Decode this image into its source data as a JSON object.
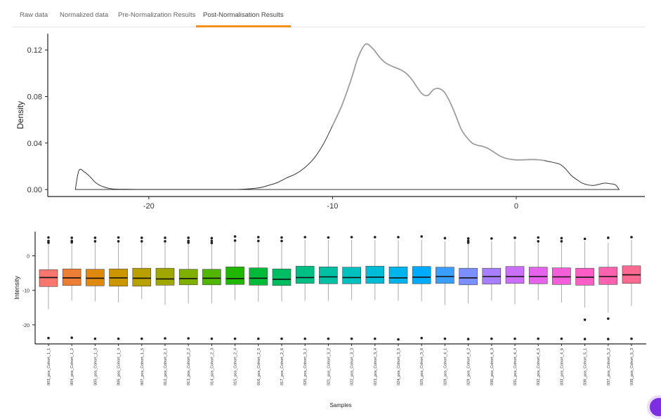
{
  "tabs": [
    {
      "label": "Raw data",
      "active": false
    },
    {
      "label": "Normalized data",
      "active": false
    },
    {
      "label": "Pre-Normalization Results",
      "active": false
    },
    {
      "label": "Post-Normalisation Results",
      "active": true
    }
  ],
  "colors": {
    "accent": "#f39212",
    "density_line": "#333333",
    "density_highlight": "#9e9e9e"
  },
  "chart_data": [
    {
      "type": "line",
      "title": "",
      "xlabel": "",
      "ylabel": "Density",
      "xlim": [
        -25.5,
        7
      ],
      "ylim": [
        -0.006,
        0.134
      ],
      "xticks": [
        -20,
        -10,
        0
      ],
      "yticks": [
        0.0,
        0.04,
        0.08,
        0.12
      ],
      "ytick_labels": [
        "0.00",
        "0.04",
        "0.08",
        "0.12"
      ],
      "xtick_labels": [
        "-20",
        "-10",
        "0"
      ],
      "grid": false,
      "series": [
        {
          "x": [
            -24,
            -23.8,
            -23.5,
            -23.2,
            -22.9,
            -22.5,
            -22.0,
            -21,
            -20,
            -18,
            -16,
            -15,
            -14,
            -13.5,
            -13,
            -12.5,
            -12,
            -11.5,
            -11,
            -10.5,
            -10,
            -9.5,
            -9,
            -8.6,
            -8.2,
            -7.8,
            -7.5,
            -7.2,
            -6.9,
            -6.6,
            -6.3,
            -6,
            -5.7,
            -5.4,
            -5.1,
            -4.8,
            -4.5,
            -4.2,
            -3.9,
            -3.6,
            -3.3,
            -3,
            -2.7,
            -2.4,
            -2.1,
            -1.8,
            -1.5,
            -1.2,
            -0.9,
            -0.6,
            -0.3,
            0,
            0.3,
            0.6,
            0.9,
            1.2,
            1.5,
            1.8,
            2.1,
            2.4,
            2.7,
            3.0,
            3.3,
            3.6,
            3.9,
            4.2,
            4.5,
            4.8,
            5.1,
            5.4,
            5.6
          ],
          "y": [
            0.0,
            0.0165,
            0.015,
            0.011,
            0.006,
            0.0025,
            0.0006,
            0.0002,
            0.0001,
            0.0001,
            0.0001,
            0.0002,
            0.0015,
            0.0035,
            0.006,
            0.01,
            0.0135,
            0.019,
            0.027,
            0.039,
            0.055,
            0.072,
            0.094,
            0.114,
            0.125,
            0.121,
            0.115,
            0.11,
            0.107,
            0.105,
            0.103,
            0.1,
            0.095,
            0.088,
            0.082,
            0.081,
            0.086,
            0.0868,
            0.0835,
            0.075,
            0.064,
            0.052,
            0.045,
            0.04,
            0.038,
            0.037,
            0.035,
            0.032,
            0.029,
            0.027,
            0.026,
            0.0255,
            0.0255,
            0.0257,
            0.0258,
            0.0256,
            0.025,
            0.024,
            0.023,
            0.0215,
            0.0175,
            0.012,
            0.0085,
            0.0055,
            0.004,
            0.0035,
            0.0045,
            0.0055,
            0.005,
            0.004,
            0.0
          ]
        }
      ]
    },
    {
      "type": "box",
      "title": "",
      "xlabel": "Samples",
      "ylabel": "Intensity",
      "ylim": [
        -25.5,
        7
      ],
      "yticks": [
        -20,
        -10,
        0
      ],
      "ytick_labels": [
        "-20",
        "-10",
        "0"
      ],
      "grid": false,
      "categories": [
        "003_pos_Cohort_1_1",
        "004_pos_Cohort_1_2",
        "005_pos_Cohort_1_3",
        "006_pos_Cohort_1_4",
        "007_pos_Cohort_1_5",
        "012_pos_Cohort_2_1",
        "013_pos_Cohort_2_2",
        "014_pos_Cohort_2_3",
        "015_pos_Cohort_2_4",
        "016_pos_Cohort_2_5",
        "017_pos_Cohort_2_6",
        "020_pos_Cohort_3_1",
        "021_pos_Cohort_3_2",
        "022_pos_Cohort_3_3",
        "023_pos_Cohort_3_4",
        "024_pos_Cohort_3_5",
        "025_pos_Cohort_3_6",
        "028_pos_Cohort_4_1",
        "029_pos_Cohort_4_2",
        "030_pos_Cohort_4_3",
        "031_pos_Cohort_4_4",
        "032_pos_Cohort_4_5",
        "033_pos_Cohort_4_6",
        "036_pos_Cohort_5_1",
        "037_pos_Cohort_5_2",
        "038_pos_Cohort_5_3"
      ],
      "boxes": [
        {
          "min": -15.5,
          "q1": -8.9,
          "median": -6.3,
          "q3": -4.0,
          "max": 4.2,
          "color": "#f8766d",
          "outliers": [
            5.3,
            4.3,
            3.8,
            -23.8
          ]
        },
        {
          "min": -13.0,
          "q1": -8.6,
          "median": -6.4,
          "q3": -3.8,
          "max": 4.0,
          "color": "#ec7f35",
          "outliers": [
            5.2,
            4.3,
            3.9,
            -23.7
          ]
        },
        {
          "min": -13.2,
          "q1": -8.7,
          "median": -6.5,
          "q3": -3.9,
          "max": 4.2,
          "color": "#e0890f",
          "outliers": [
            5.2,
            4.2,
            -24.0
          ]
        },
        {
          "min": -13.5,
          "q1": -8.8,
          "median": -6.4,
          "q3": -3.8,
          "max": 4.2,
          "color": "#cc9600",
          "outliers": [
            5.3,
            4.2,
            -24.0
          ]
        },
        {
          "min": -12.5,
          "q1": -8.8,
          "median": -6.5,
          "q3": -3.6,
          "max": 4.1,
          "color": "#b8a000",
          "outliers": [
            5.2,
            4.2,
            -24.0
          ]
        },
        {
          "min": -14.2,
          "q1": -8.5,
          "median": -6.7,
          "q3": -3.6,
          "max": 4.2,
          "color": "#a0a800",
          "outliers": [
            5.2,
            4.2,
            -23.9
          ]
        },
        {
          "min": -13.8,
          "q1": -8.4,
          "median": -6.6,
          "q3": -3.9,
          "max": 4.0,
          "color": "#7fb000",
          "outliers": [
            5.2,
            4.3,
            3.8,
            -23.9
          ]
        },
        {
          "min": -13.8,
          "q1": -8.4,
          "median": -6.5,
          "q3": -3.9,
          "max": 4.1,
          "color": "#52b500",
          "outliers": [
            5.1,
            4.3,
            3.7,
            -24.0
          ]
        },
        {
          "min": -12.8,
          "q1": -8.3,
          "median": -6.6,
          "q3": -3.2,
          "max": 4.3,
          "color": "#21b700",
          "outliers": [
            5.6,
            4.4,
            -24.0
          ]
        },
        {
          "min": -13.3,
          "q1": -8.5,
          "median": -6.5,
          "q3": -3.5,
          "max": 4.3,
          "color": "#00ba38",
          "outliers": [
            5.4,
            4.3,
            -24.0
          ]
        },
        {
          "min": -13.2,
          "q1": -8.6,
          "median": -6.8,
          "q3": -3.8,
          "max": 4.3,
          "color": "#00bd62",
          "outliers": [
            5.3,
            4.3,
            -24.0
          ]
        },
        {
          "min": -13.0,
          "q1": -8.0,
          "median": -6.3,
          "q3": -3.0,
          "max": 4.5,
          "color": "#00bf85",
          "outliers": [
            5.4,
            -24.0
          ]
        },
        {
          "min": -13.0,
          "q1": -8.1,
          "median": -6.1,
          "q3": -3.2,
          "max": 4.5,
          "color": "#00c0a3",
          "outliers": [
            5.3,
            -24.0
          ]
        },
        {
          "min": -12.8,
          "q1": -8.1,
          "median": -6.3,
          "q3": -3.3,
          "max": 4.6,
          "color": "#00c0bd",
          "outliers": [
            5.4,
            -24.0
          ]
        },
        {
          "min": -12.8,
          "q1": -8.0,
          "median": -6.2,
          "q3": -3.0,
          "max": 4.5,
          "color": "#00bcd6",
          "outliers": [
            5.4,
            -24.0
          ]
        },
        {
          "min": -13.0,
          "q1": -8.0,
          "median": -6.4,
          "q3": -3.2,
          "max": 4.4,
          "color": "#00b5ec",
          "outliers": [
            5.4,
            -24.2
          ]
        },
        {
          "min": -13.2,
          "q1": -8.1,
          "median": -6.2,
          "q3": -3.1,
          "max": 4.6,
          "color": "#00abfd",
          "outliers": [
            5.6,
            -23.8
          ]
        },
        {
          "min": -14.2,
          "q1": -8.0,
          "median": -6.0,
          "q3": -3.3,
          "max": 4.2,
          "color": "#3a9eff",
          "outliers": [
            5.1,
            -24.0
          ]
        },
        {
          "min": -13.8,
          "q1": -8.4,
          "median": -6.4,
          "q3": -3.6,
          "max": 4.1,
          "color": "#7b8fff",
          "outliers": [
            5.0,
            4.3,
            3.8,
            -24.1
          ]
        },
        {
          "min": -13.0,
          "q1": -8.2,
          "median": -6.0,
          "q3": -3.6,
          "max": 4.2,
          "color": "#a880ff",
          "outliers": [
            5.0,
            -24.0
          ]
        },
        {
          "min": -14.0,
          "q1": -8.0,
          "median": -6.0,
          "q3": -3.1,
          "max": 4.3,
          "color": "#cb6ef8",
          "outliers": [
            5.2,
            -24.0
          ]
        },
        {
          "min": -12.8,
          "q1": -8.1,
          "median": -6.0,
          "q3": -3.3,
          "max": 4.3,
          "color": "#e564eb",
          "outliers": [
            5.3,
            4.2,
            -24.0
          ]
        },
        {
          "min": -13.5,
          "q1": -8.3,
          "median": -6.1,
          "q3": -3.5,
          "max": 4.2,
          "color": "#f55ed9",
          "outliers": [
            5.1,
            4.2,
            -24.0
          ]
        },
        {
          "min": -15.0,
          "q1": -8.5,
          "median": -6.2,
          "q3": -3.6,
          "max": 4.2,
          "color": "#fc5ec5",
          "outliers": [
            4.9,
            -18.5,
            -24.1
          ]
        },
        {
          "min": -16.5,
          "q1": -8.3,
          "median": -6.0,
          "q3": -3.3,
          "max": 3.8,
          "color": "#fe61ad",
          "outliers": [
            5.2,
            -18.2,
            -24.1
          ]
        },
        {
          "min": -14.5,
          "q1": -8.0,
          "median": -5.5,
          "q3": -2.9,
          "max": 4.5,
          "color": "#fe6991",
          "outliers": [
            5.4,
            -24.0
          ]
        }
      ]
    }
  ]
}
